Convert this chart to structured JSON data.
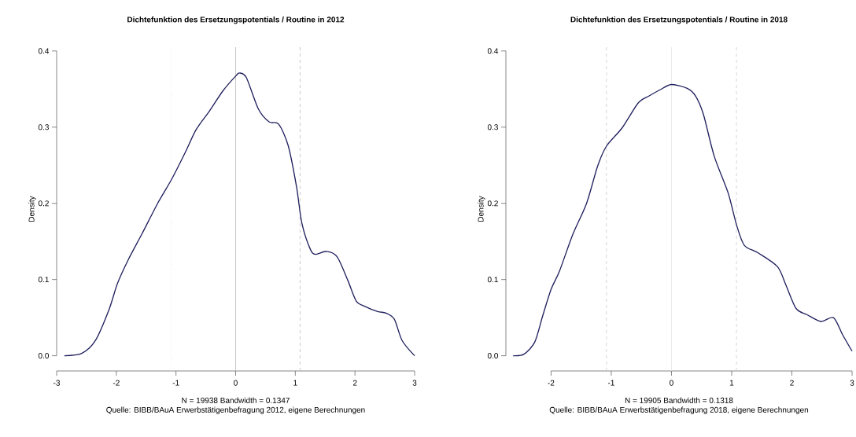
{
  "chart_data": [
    {
      "type": "line",
      "title": "Dichtefunktion des Ersetzungspotentials / Routine in 2012",
      "xlabel": "N = 19938   Bandwidth = 0.1347",
      "ylabel": "Density",
      "annotations": [
        "Quelle: BIBB/BAuA Erwerbstätigenbefragung 2012, eigene Berechnungen"
      ],
      "series": [
        {
          "color": "#20205e",
          "line_style": "solid",
          "x": [
            -2.87,
            -2.58,
            -2.35,
            -2.12,
            -1.98,
            -1.8,
            -1.57,
            -1.3,
            -1.07,
            -0.85,
            -0.66,
            -0.44,
            -0.21,
            0,
            0.064,
            0.18,
            0.38,
            0.56,
            0.72,
            0.88,
            1.02,
            1.11,
            1.25,
            1.34,
            1.52,
            1.7,
            1.88,
            2.02,
            2.16,
            2.38,
            2.52,
            2.66,
            2.79,
            3.0
          ],
          "values": [
            0,
            0.003,
            0.02,
            0.061,
            0.095,
            0.126,
            0.16,
            0.201,
            0.232,
            0.266,
            0.297,
            0.321,
            0.348,
            0.367,
            0.371,
            0.365,
            0.324,
            0.307,
            0.304,
            0.276,
            0.222,
            0.174,
            0.14,
            0.133,
            0.137,
            0.13,
            0.099,
            0.072,
            0.065,
            0.058,
            0.056,
            0.048,
            0.02,
            0
          ]
        }
      ],
      "xlim": [
        -3,
        3
      ],
      "ylim": [
        -0.02,
        0.405
      ],
      "xticks": [
        -3,
        -2,
        -1,
        0,
        1,
        2,
        3
      ],
      "yticks": [
        {
          "value": 0,
          "label": "0.0"
        },
        {
          "value": 0.1,
          "label": "0.1"
        },
        {
          "value": 0.2,
          "label": "0.2"
        },
        {
          "value": 0.3,
          "label": "0.3"
        },
        {
          "value": 0.4,
          "label": "0.4"
        }
      ],
      "ref_lines": [
        {
          "axis": "x",
          "value": -1.08,
          "color": "#dddddd",
          "line_style": "dotted"
        },
        {
          "axis": "x",
          "value": 0,
          "color": "#bbbbbb",
          "line_style": "solid"
        },
        {
          "axis": "x",
          "value": 1.08,
          "color": "#bbbbbb",
          "line_style": "dashed"
        }
      ],
      "grid": false
    },
    {
      "type": "line",
      "title": "Dichtefunktion des Ersetzungspotentials / Routine in 2018",
      "xlabel": "N = 19905   Bandwidth = 0.1318",
      "ylabel": "Density",
      "annotations": [
        "Quelle: BIBB/BAuA Erwerbstätigenbefragung 2018, eigene Berechnungen"
      ],
      "series": [
        {
          "color": "#20205e",
          "line_style": "solid",
          "x": [
            -2.63,
            -2.45,
            -2.27,
            -2.14,
            -2.0,
            -1.86,
            -1.64,
            -1.41,
            -1.23,
            -1.08,
            -0.82,
            -0.55,
            -0.37,
            -0.19,
            0,
            0.26,
            0.4,
            0.53,
            0.71,
            0.94,
            1.08,
            1.21,
            1.44,
            1.76,
            1.9,
            2.07,
            2.25,
            2.48,
            2.69,
            2.84,
            3.0
          ],
          "values": [
            0,
            0.002,
            0.018,
            0.052,
            0.087,
            0.111,
            0.159,
            0.2,
            0.248,
            0.275,
            0.299,
            0.332,
            0.341,
            0.349,
            0.356,
            0.351,
            0.341,
            0.317,
            0.262,
            0.214,
            0.172,
            0.145,
            0.135,
            0.117,
            0.093,
            0.062,
            0.054,
            0.045,
            0.05,
            0.028,
            0.006
          ]
        }
      ],
      "xlim": [
        -2.75,
        3
      ],
      "ylim": [
        -0.02,
        0.405
      ],
      "xticks": [
        -2,
        -1,
        0,
        1,
        2,
        3
      ],
      "yticks": [
        {
          "value": 0,
          "label": "0.0"
        },
        {
          "value": 0.1,
          "label": "0.1"
        },
        {
          "value": 0.2,
          "label": "0.2"
        },
        {
          "value": 0.3,
          "label": "0.3"
        },
        {
          "value": 0.4,
          "label": "0.4"
        }
      ],
      "ref_lines": [
        {
          "axis": "x",
          "value": -1.08,
          "color": "#cccccc",
          "line_style": "dashed"
        },
        {
          "axis": "x",
          "value": 0,
          "color": "#e4e4e4",
          "line_style": "solid"
        },
        {
          "axis": "x",
          "value": 1.08,
          "color": "#cccccc",
          "line_style": "dashed"
        }
      ],
      "grid": false
    }
  ]
}
